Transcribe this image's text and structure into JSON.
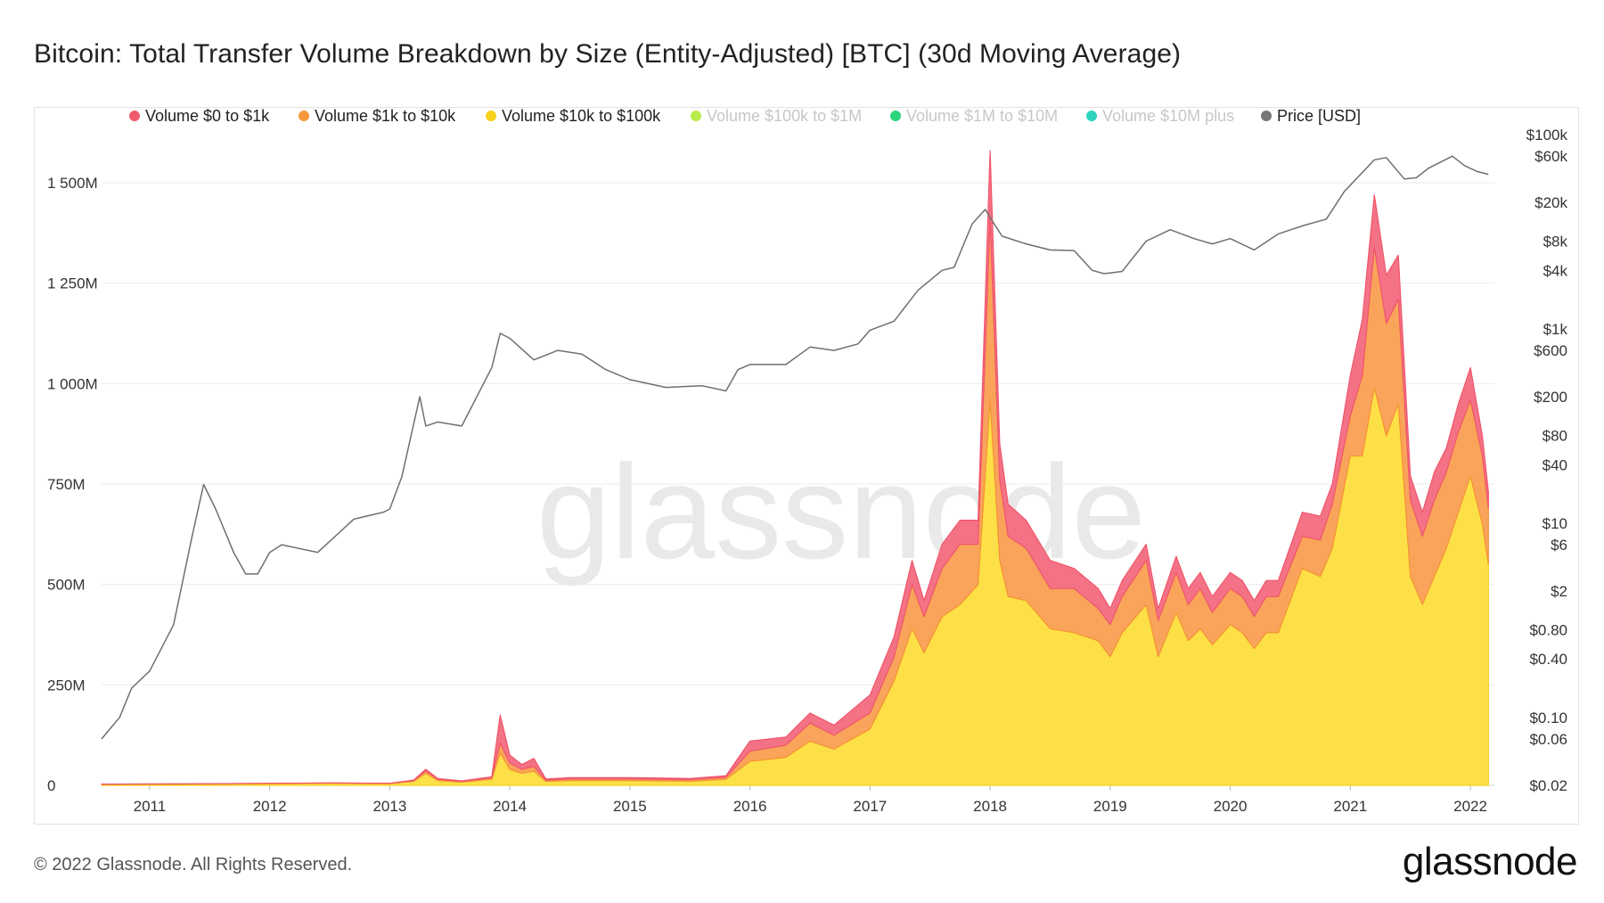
{
  "title": "Bitcoin: Total Transfer Volume Breakdown by Size (Entity-Adjusted) [BTC] (30d Moving Average)",
  "footer": "© 2022 Glassnode. All Rights Reserved.",
  "brand": "glassnode",
  "watermark": "glassnode",
  "chart_data": {
    "type": "area",
    "legend": [
      {
        "label": "Volume $0 to $1k",
        "color": "#f05a6e",
        "active": true
      },
      {
        "label": "Volume $1k to $10k",
        "color": "#f5973b",
        "active": true
      },
      {
        "label": "Volume $10k to $100k",
        "color": "#f7d21a",
        "active": true
      },
      {
        "label": "Volume $100k to $1M",
        "color": "#b8ec4a",
        "active": false
      },
      {
        "label": "Volume $1M to $10M",
        "color": "#2ed47a",
        "active": false
      },
      {
        "label": "Volume $10M plus",
        "color": "#2ed4c0",
        "active": false
      },
      {
        "label": "Price [USD]",
        "color": "#777777",
        "active": true
      }
    ],
    "x_ticks": [
      "2011",
      "2012",
      "2013",
      "2014",
      "2015",
      "2016",
      "2017",
      "2018",
      "2019",
      "2020",
      "2021",
      "2022"
    ],
    "xlim": [
      2010.6,
      2022.2
    ],
    "y_left_ticks": [
      "0",
      "250M",
      "500M",
      "750M",
      "1 000M",
      "1 250M",
      "1 500M"
    ],
    "y_left_values": [
      0,
      250,
      500,
      750,
      1000,
      1250,
      1500
    ],
    "ylim_left_millions": [
      0,
      1620
    ],
    "y_right_ticks": [
      "$100k",
      "$60k",
      "$20k",
      "$8k",
      "$4k",
      "$1k",
      "$600",
      "$200",
      "$80",
      "$40",
      "$10",
      "$6",
      "$2",
      "$0.80",
      "$0.40",
      "$0.10",
      "$0.06",
      "$0.02"
    ],
    "y_right_values": [
      100000,
      60000,
      20000,
      8000,
      4000,
      1000,
      600,
      200,
      80,
      40,
      10,
      6,
      2,
      0.8,
      0.4,
      0.1,
      0.06,
      0.02
    ],
    "ylim_right_log": [
      0.02,
      100000
    ],
    "series": [
      {
        "name": "Volume $10k to $100k",
        "unit": "M BTC",
        "x": [
          2010.6,
          2011.5,
          2012.5,
          2013.0,
          2013.2,
          2013.3,
          2013.4,
          2013.6,
          2013.85,
          2013.92,
          2014.0,
          2014.1,
          2014.2,
          2014.3,
          2014.5,
          2015.0,
          2015.5,
          2015.8,
          2016.0,
          2016.3,
          2016.5,
          2016.7,
          2017.0,
          2017.2,
          2017.35,
          2017.45,
          2017.6,
          2017.75,
          2017.9,
          2018.0,
          2018.08,
          2018.15,
          2018.3,
          2018.5,
          2018.7,
          2018.9,
          2019.0,
          2019.1,
          2019.3,
          2019.4,
          2019.55,
          2019.65,
          2019.75,
          2019.85,
          2020.0,
          2020.1,
          2020.2,
          2020.3,
          2020.4,
          2020.6,
          2020.75,
          2020.85,
          2021.0,
          2021.1,
          2021.2,
          2021.3,
          2021.4,
          2021.5,
          2021.6,
          2021.7,
          2021.8,
          2021.9,
          2022.0,
          2022.1,
          2022.15
        ],
        "values": [
          2,
          3,
          5,
          4,
          10,
          30,
          12,
          8,
          15,
          80,
          40,
          30,
          35,
          10,
          12,
          12,
          10,
          15,
          60,
          70,
          110,
          90,
          140,
          260,
          390,
          330,
          420,
          450,
          500,
          960,
          560,
          470,
          460,
          390,
          380,
          360,
          320,
          380,
          450,
          320,
          430,
          360,
          390,
          350,
          400,
          380,
          340,
          380,
          380,
          540,
          520,
          590,
          820,
          820,
          990,
          870,
          950,
          520,
          450,
          520,
          590,
          680,
          770,
          650,
          550
        ]
      },
      {
        "name": "Volume $1k to $10k",
        "unit": "M BTC",
        "x": [
          2010.6,
          2011.5,
          2012.5,
          2013.0,
          2013.2,
          2013.3,
          2013.4,
          2013.6,
          2013.85,
          2013.92,
          2014.0,
          2014.1,
          2014.2,
          2014.3,
          2014.5,
          2015.0,
          2015.5,
          2015.8,
          2016.0,
          2016.3,
          2016.5,
          2016.7,
          2017.0,
          2017.2,
          2017.35,
          2017.45,
          2017.6,
          2017.75,
          2017.9,
          2018.0,
          2018.08,
          2018.15,
          2018.3,
          2018.5,
          2018.7,
          2018.9,
          2019.0,
          2019.1,
          2019.3,
          2019.4,
          2019.55,
          2019.65,
          2019.75,
          2019.85,
          2020.0,
          2020.1,
          2020.2,
          2020.3,
          2020.4,
          2020.6,
          2020.75,
          2020.85,
          2021.0,
          2021.1,
          2021.2,
          2021.3,
          2021.4,
          2021.5,
          2021.6,
          2021.7,
          2021.8,
          2021.9,
          2022.0,
          2022.1,
          2022.15
        ],
        "values": [
          1,
          1,
          1,
          1,
          2,
          6,
          3,
          2,
          4,
          25,
          15,
          10,
          12,
          3,
          4,
          4,
          4,
          5,
          25,
          30,
          45,
          35,
          40,
          60,
          110,
          90,
          120,
          150,
          100,
          450,
          200,
          150,
          130,
          100,
          110,
          80,
          80,
          90,
          110,
          90,
          100,
          90,
          100,
          80,
          90,
          90,
          80,
          90,
          90,
          80,
          90,
          110,
          100,
          200,
          350,
          280,
          260,
          190,
          170,
          190,
          190,
          200,
          190,
          170,
          140
        ]
      },
      {
        "name": "Volume $0 to $1k",
        "unit": "M BTC",
        "x": [
          2010.6,
          2011.5,
          2012.5,
          2013.0,
          2013.2,
          2013.3,
          2013.4,
          2013.6,
          2013.85,
          2013.92,
          2014.0,
          2014.1,
          2014.2,
          2014.3,
          2014.5,
          2015.0,
          2015.5,
          2015.8,
          2016.0,
          2016.3,
          2016.5,
          2016.7,
          2017.0,
          2017.2,
          2017.35,
          2017.45,
          2017.6,
          2017.75,
          2017.9,
          2018.0,
          2018.08,
          2018.15,
          2018.3,
          2018.5,
          2018.7,
          2018.9,
          2019.0,
          2019.1,
          2019.3,
          2019.4,
          2019.55,
          2019.65,
          2019.75,
          2019.85,
          2020.0,
          2020.1,
          2020.2,
          2020.3,
          2020.4,
          2020.6,
          2020.75,
          2020.85,
          2021.0,
          2021.1,
          2021.2,
          2021.3,
          2021.4,
          2021.5,
          2021.6,
          2021.7,
          2021.8,
          2021.9,
          2022.0,
          2022.1,
          2022.15
        ],
        "values": [
          0,
          0,
          0,
          0,
          1,
          4,
          2,
          1,
          2,
          70,
          20,
          12,
          20,
          3,
          3,
          3,
          3,
          4,
          25,
          20,
          25,
          25,
          45,
          50,
          60,
          40,
          60,
          60,
          60,
          170,
          90,
          80,
          70,
          70,
          50,
          50,
          40,
          40,
          40,
          30,
          40,
          40,
          40,
          40,
          40,
          40,
          40,
          40,
          40,
          60,
          60,
          50,
          100,
          140,
          130,
          120,
          110,
          60,
          60,
          70,
          60,
          70,
          80,
          50,
          40
        ]
      },
      {
        "name": "Price [USD]",
        "unit": "USD",
        "x": [
          2010.6,
          2010.75,
          2010.85,
          2011.0,
          2011.2,
          2011.35,
          2011.45,
          2011.55,
          2011.7,
          2011.8,
          2011.9,
          2012.0,
          2012.1,
          2012.4,
          2012.7,
          2012.95,
          2013.0,
          2013.1,
          2013.25,
          2013.3,
          2013.4,
          2013.6,
          2013.85,
          2013.92,
          2014.0,
          2014.2,
          2014.4,
          2014.6,
          2014.8,
          2015.0,
          2015.3,
          2015.6,
          2015.8,
          2015.9,
          2016.0,
          2016.3,
          2016.5,
          2016.7,
          2016.9,
          2017.0,
          2017.2,
          2017.4,
          2017.6,
          2017.7,
          2017.85,
          2017.96,
          2018.0,
          2018.1,
          2018.3,
          2018.5,
          2018.7,
          2018.85,
          2018.95,
          2019.1,
          2019.3,
          2019.5,
          2019.7,
          2019.85,
          2020.0,
          2020.2,
          2020.4,
          2020.6,
          2020.8,
          2020.95,
          2021.05,
          2021.2,
          2021.3,
          2021.45,
          2021.55,
          2021.65,
          2021.85,
          2021.95,
          2022.05,
          2022.15
        ],
        "values": [
          0.06,
          0.1,
          0.2,
          0.3,
          0.9,
          7,
          25,
          14,
          5,
          3,
          3,
          5,
          6,
          5,
          11,
          13,
          14,
          30,
          200,
          100,
          110,
          100,
          400,
          900,
          800,
          480,
          600,
          550,
          380,
          300,
          250,
          260,
          230,
          380,
          430,
          430,
          650,
          600,
          700,
          970,
          1200,
          2500,
          4000,
          4300,
          12000,
          17000,
          14000,
          9000,
          7500,
          6500,
          6400,
          4000,
          3700,
          3900,
          8000,
          10500,
          8500,
          7500,
          8500,
          6500,
          9500,
          11500,
          13500,
          26000,
          35000,
          55000,
          58000,
          35000,
          36000,
          45000,
          60000,
          48000,
          42000,
          39000
        ]
      }
    ]
  }
}
